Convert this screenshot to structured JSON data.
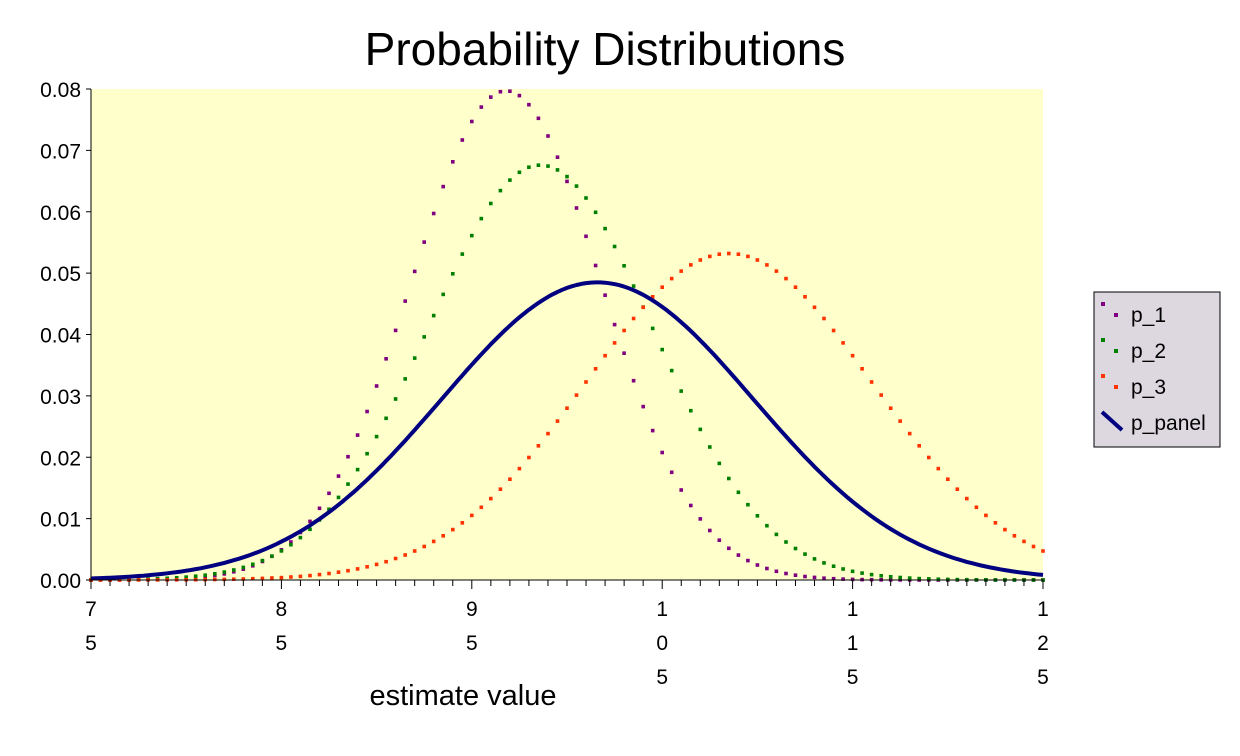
{
  "chart_data": {
    "type": "line",
    "title": "Probability Distributions",
    "xlabel": "estimate value",
    "ylabel": "",
    "xlim": [
      75,
      125
    ],
    "ylim": [
      0,
      0.08
    ],
    "yticks": [
      "0.00",
      "0.01",
      "0.02",
      "0.03",
      "0.04",
      "0.05",
      "0.06",
      "0.07",
      "0.08"
    ],
    "xticks": [
      {
        "value": 75,
        "label": [
          "7",
          "5"
        ]
      },
      {
        "value": 85,
        "label": [
          "8",
          "5"
        ]
      },
      {
        "value": 95,
        "label": [
          "9",
          "5"
        ]
      },
      {
        "value": 105,
        "label": [
          "1",
          "0",
          "5"
        ]
      },
      {
        "value": 115,
        "label": [
          "1",
          "1",
          "5"
        ]
      },
      {
        "value": 125,
        "label": [
          "1",
          "2",
          "5"
        ]
      }
    ],
    "grid": false,
    "legend_position": "right",
    "plot_background": "#ffffcc",
    "series": [
      {
        "name": "p_1",
        "style": "dotted",
        "color": "#800080",
        "mu": 96.8,
        "sigma": 5.0,
        "peak": 0.0797
      },
      {
        "name": "p_2",
        "style": "dotted",
        "color": "#008000",
        "mu": 98.6,
        "sigma": 5.9,
        "peak": 0.0676
      },
      {
        "name": "p_3",
        "style": "dotted",
        "color": "#ff3300",
        "mu": 108.5,
        "sigma": 7.5,
        "peak": 0.0532
      },
      {
        "name": "p_panel",
        "style": "solid",
        "color": "#000080",
        "mu": 101.6,
        "sigma": 8.2,
        "peak": 0.0485
      }
    ]
  }
}
